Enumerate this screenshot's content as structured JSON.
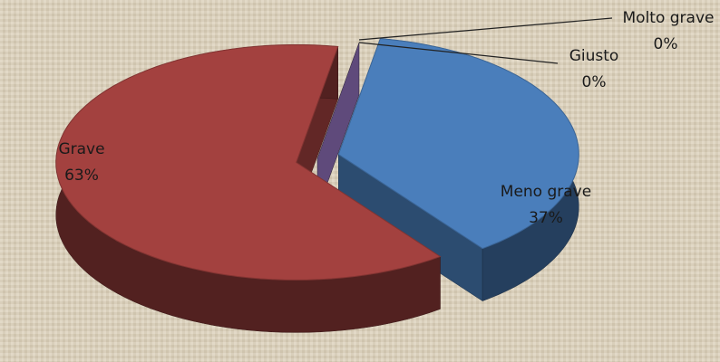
{
  "chart_data": {
    "type": "pie3d",
    "categories": [
      "Meno grave",
      "Grave",
      "Giusto",
      "Molto grave"
    ],
    "values": [
      37,
      63,
      0,
      0
    ],
    "value_labels": [
      "37%",
      "63%",
      "0%",
      "0%"
    ],
    "colors": [
      "#4a7ebb",
      "#a3413f",
      "#5f4a7b",
      "#7d9c3f"
    ]
  }
}
